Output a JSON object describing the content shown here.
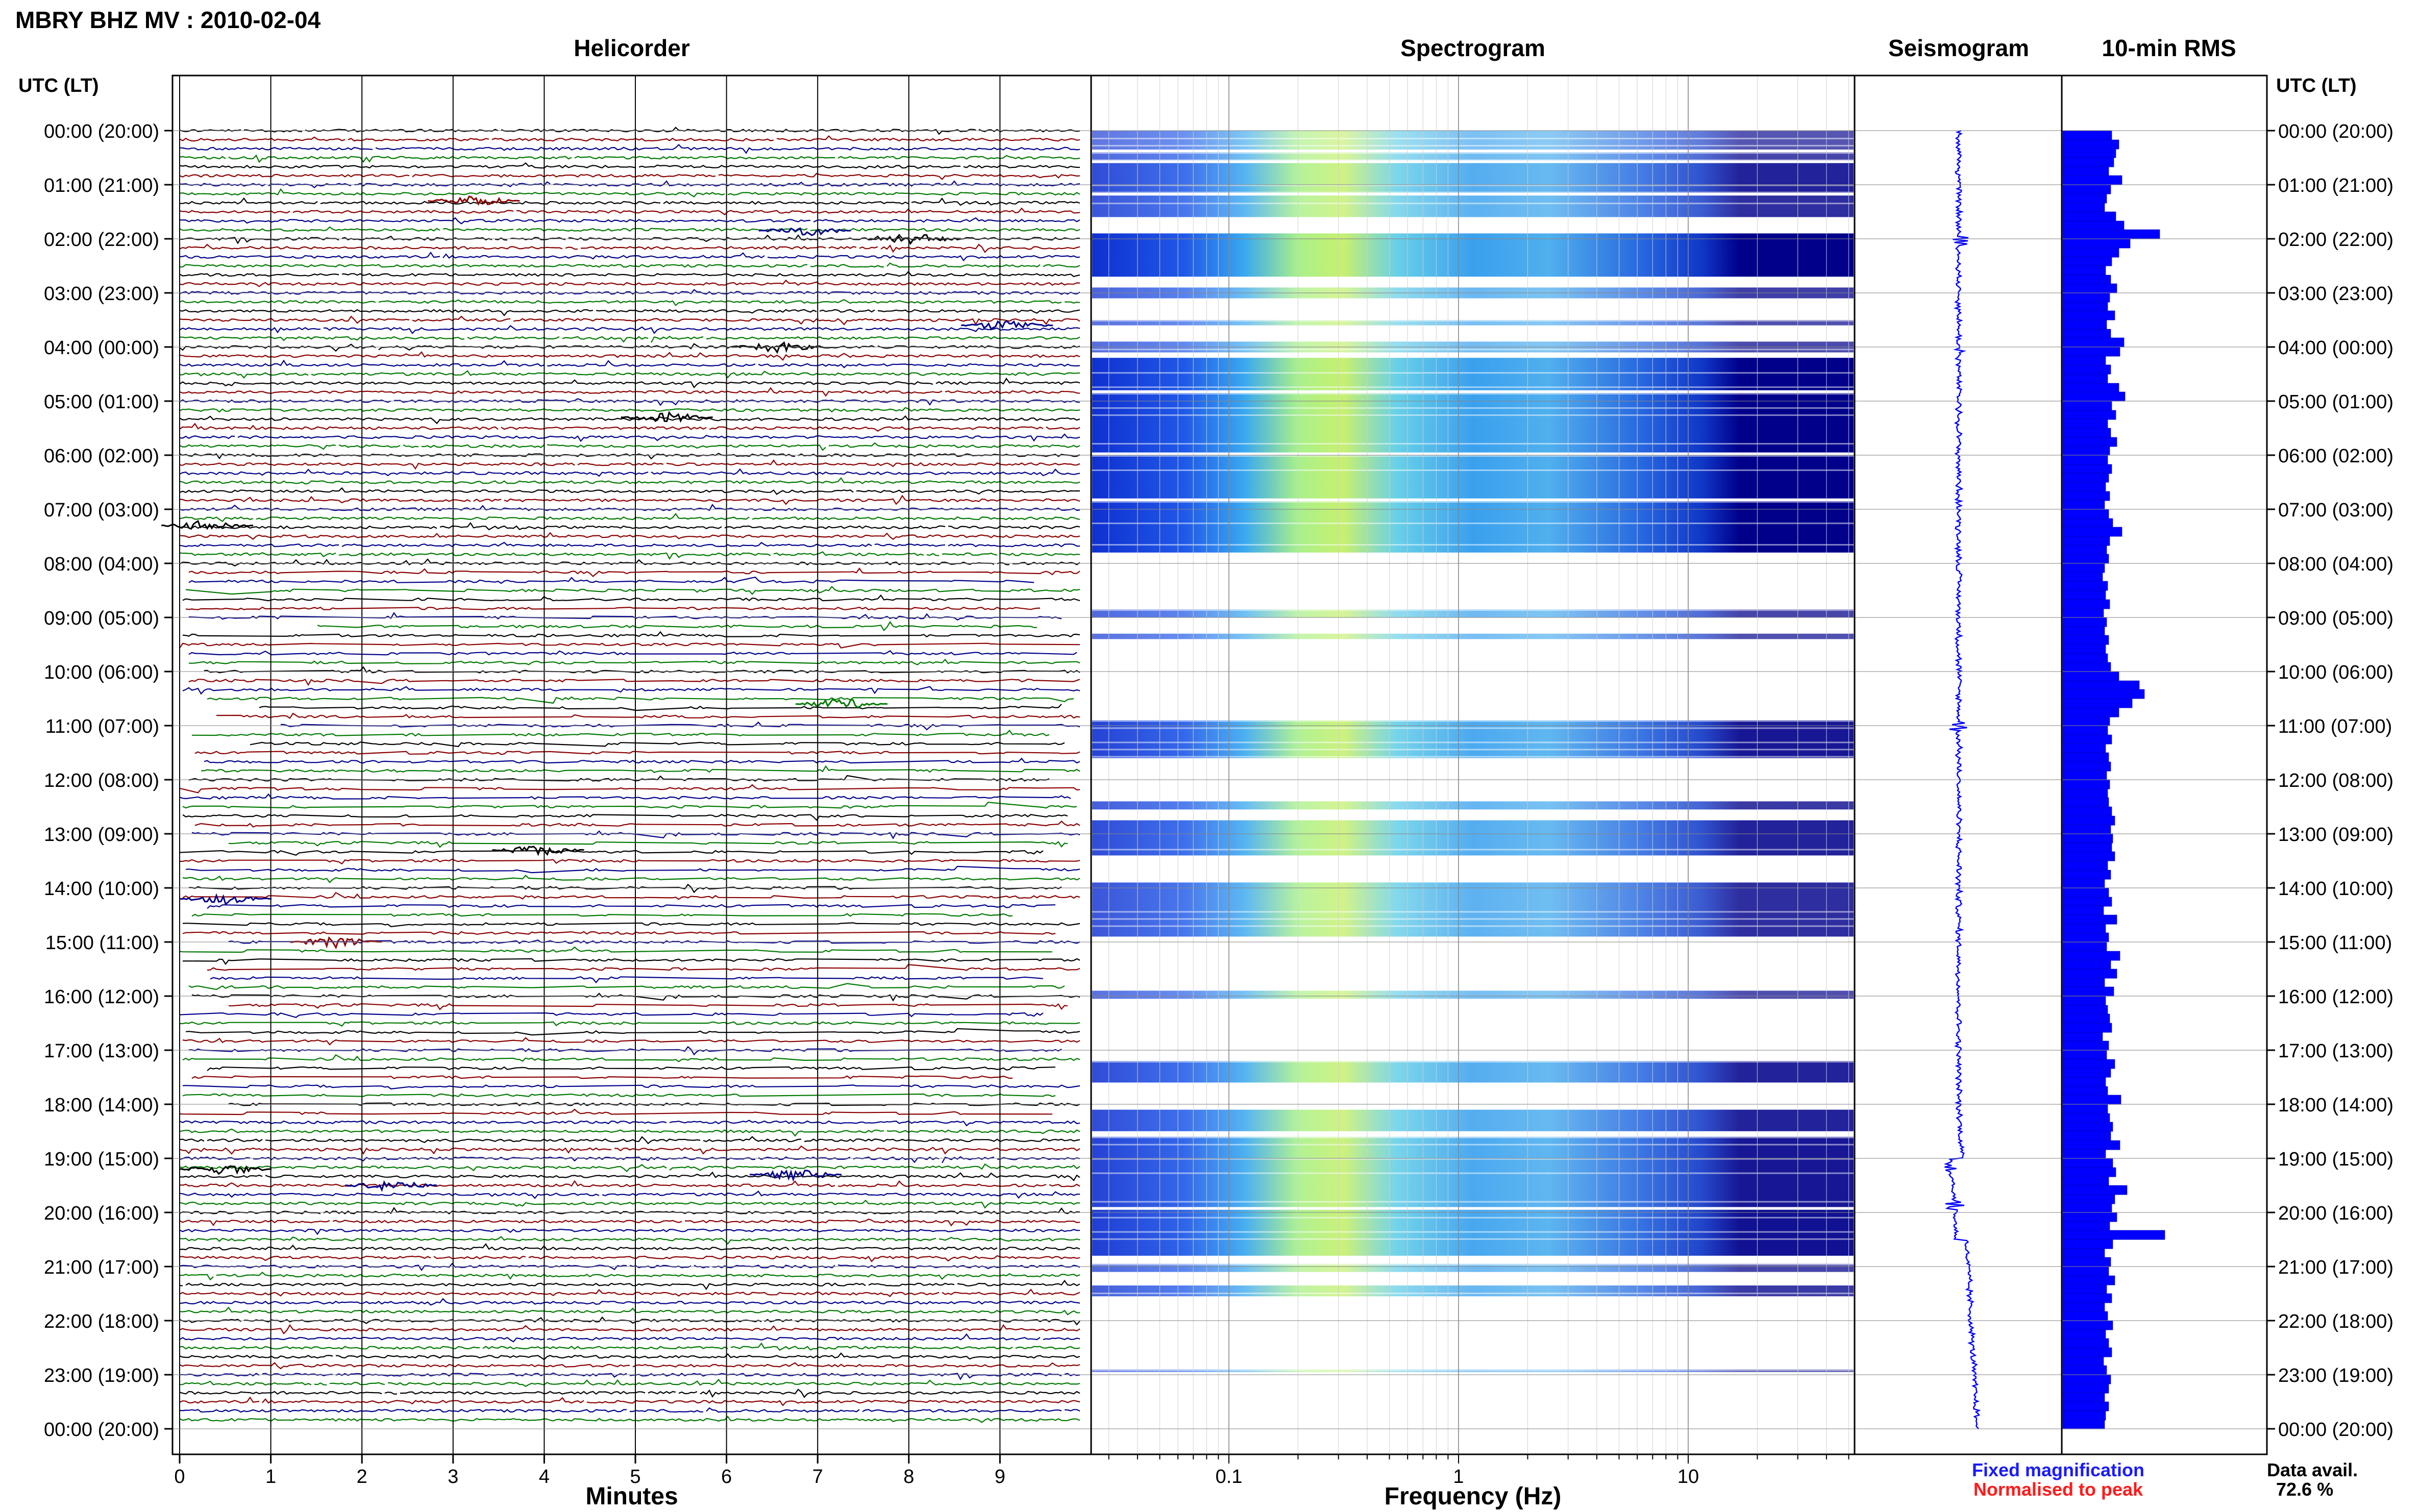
{
  "title": "MBRY BHZ MV : 2010-02-04",
  "panels": {
    "helicorder": "Helicorder",
    "spectrogram": "Spectrogram",
    "seismogram": "Seismogram",
    "rms": "10-min RMS"
  },
  "time_axis_label": "UTC (LT)",
  "time_ticks": [
    "00:00 (20:00)",
    "01:00 (21:00)",
    "02:00 (22:00)",
    "03:00 (23:00)",
    "04:00 (00:00)",
    "05:00 (01:00)",
    "06:00 (02:00)",
    "07:00 (03:00)",
    "08:00 (04:00)",
    "09:00 (05:00)",
    "10:00 (06:00)",
    "11:00 (07:00)",
    "12:00 (08:00)",
    "13:00 (09:00)",
    "14:00 (10:00)",
    "15:00 (11:00)",
    "16:00 (12:00)",
    "17:00 (13:00)",
    "18:00 (14:00)",
    "19:00 (15:00)",
    "20:00 (16:00)",
    "21:00 (17:00)",
    "22:00 (18:00)",
    "23:00 (19:00)",
    "00:00 (20:00)"
  ],
  "helicorder_xlabel": "Minutes",
  "helicorder_ticks": [
    "0",
    "1",
    "2",
    "3",
    "4",
    "5",
    "6",
    "7",
    "8",
    "9"
  ],
  "spectrogram_xlabel": "Frequency (Hz)",
  "spectrogram_ticks": [
    "0.1",
    "1",
    "10"
  ],
  "legend": {
    "fixed": "Fixed magnification",
    "normalised": "Normalised to peak",
    "fixed_color": "#1a1aff",
    "normalised_color": "#ff1a1a"
  },
  "data_avail": {
    "label": "Data avail.",
    "value": "72.6 %"
  },
  "colors": {
    "trace_cycle": [
      "#000000",
      "#8b0000",
      "#00008b",
      "#007a00"
    ],
    "rms_bar": "#0000ff",
    "seismogram": "#0000ff"
  },
  "chart_data": {
    "type": "bar",
    "title": "10-min RMS",
    "ylabel": "UTC (LT)",
    "ylim_hours": [
      0,
      24
    ],
    "hours": [
      0,
      0.17,
      0.33,
      0.5,
      0.67,
      0.83,
      1,
      1.17,
      1.33,
      1.5,
      1.67,
      1.83,
      2,
      2.17,
      2.33,
      2.5,
      2.67,
      2.83,
      3,
      3.17,
      3.33,
      3.5,
      3.67,
      3.83,
      4,
      4.17,
      4.33,
      4.5,
      4.67,
      4.83,
      5,
      5.17,
      5.33,
      5.5,
      5.67,
      5.83,
      6,
      6.17,
      6.33,
      6.5,
      6.67,
      6.83,
      7,
      7.17,
      7.33,
      7.5,
      7.67,
      7.83,
      8,
      8.17,
      8.33,
      8.5,
      8.67,
      8.83,
      9,
      9.17,
      9.33,
      9.5,
      9.67,
      9.83,
      10,
      10.17,
      10.33,
      10.5,
      10.67,
      10.83,
      11,
      11.17,
      11.33,
      11.5,
      11.67,
      11.83,
      12,
      12.17,
      12.33,
      12.5,
      12.67,
      12.83,
      13,
      13.17,
      13.33,
      13.5,
      13.67,
      13.83,
      14,
      14.17,
      14.33,
      14.5,
      14.67,
      14.83,
      15,
      15.17,
      15.33,
      15.5,
      15.67,
      15.83,
      16,
      16.17,
      16.33,
      16.5,
      16.67,
      16.83,
      17,
      17.17,
      17.33,
      17.5,
      17.67,
      17.83,
      18,
      18.17,
      18.33,
      18.5,
      18.67,
      18.83,
      19,
      19.17,
      19.33,
      19.5,
      19.67,
      19.83,
      20,
      20.17,
      20.33,
      20.5,
      20.67,
      20.83,
      21,
      21.17,
      21.33,
      21.5,
      21.67,
      21.83,
      22,
      22.17,
      22.33,
      22.5,
      22.67,
      22.83,
      23,
      23.17,
      23.33,
      23.5,
      23.67,
      23.83
    ],
    "rms_relative": [
      0.48,
      0.55,
      0.52,
      0.5,
      0.45,
      0.58,
      0.47,
      0.43,
      0.41,
      0.52,
      0.6,
      0.95,
      0.66,
      0.55,
      0.48,
      0.42,
      0.47,
      0.53,
      0.46,
      0.44,
      0.51,
      0.43,
      0.47,
      0.6,
      0.56,
      0.42,
      0.47,
      0.44,
      0.55,
      0.61,
      0.48,
      0.52,
      0.44,
      0.47,
      0.53,
      0.46,
      0.44,
      0.48,
      0.45,
      0.42,
      0.46,
      0.41,
      0.45,
      0.49,
      0.58,
      0.46,
      0.43,
      0.45,
      0.41,
      0.39,
      0.44,
      0.42,
      0.46,
      0.4,
      0.43,
      0.41,
      0.45,
      0.42,
      0.44,
      0.47,
      0.55,
      0.75,
      0.8,
      0.68,
      0.55,
      0.46,
      0.44,
      0.48,
      0.42,
      0.45,
      0.47,
      0.43,
      0.46,
      0.44,
      0.45,
      0.48,
      0.51,
      0.47,
      0.49,
      0.48,
      0.51,
      0.44,
      0.47,
      0.41,
      0.45,
      0.48,
      0.4,
      0.53,
      0.42,
      0.45,
      0.43,
      0.56,
      0.47,
      0.53,
      0.41,
      0.5,
      0.42,
      0.44,
      0.46,
      0.48,
      0.39,
      0.45,
      0.43,
      0.51,
      0.47,
      0.42,
      0.44,
      0.57,
      0.44,
      0.46,
      0.49,
      0.47,
      0.56,
      0.42,
      0.49,
      0.52,
      0.45,
      0.63,
      0.51,
      0.48,
      0.53,
      0.46,
      1.0,
      0.49,
      0.41,
      0.47,
      0.45,
      0.51,
      0.43,
      0.48,
      0.41,
      0.44,
      0.49,
      0.42,
      0.45,
      0.48,
      0.4,
      0.43,
      0.47,
      0.45,
      0.41,
      0.45,
      0.42,
      0.41
    ]
  }
}
